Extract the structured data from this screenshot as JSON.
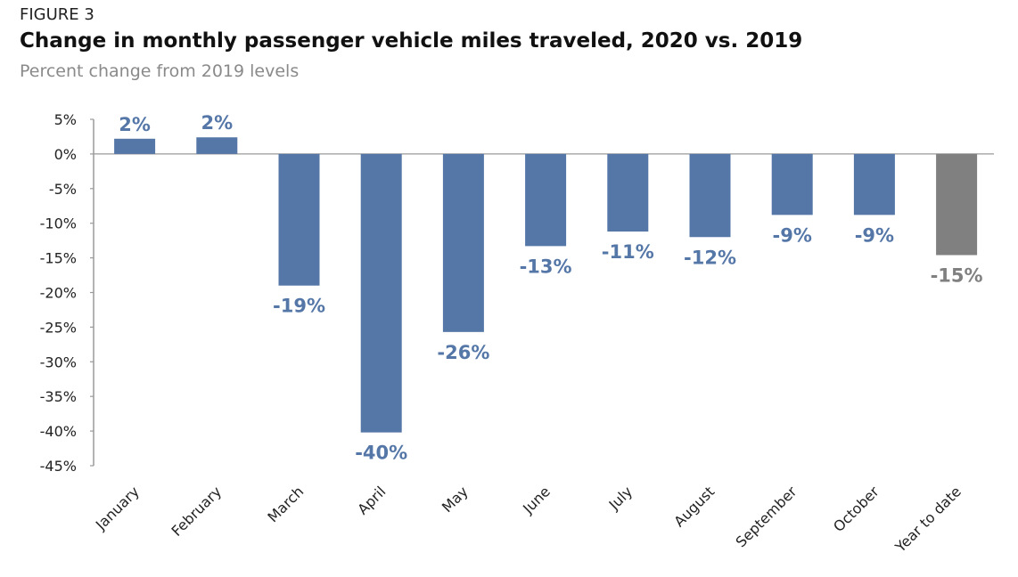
{
  "figure_label": "FIGURE 3",
  "chart_data": {
    "type": "bar",
    "title": "Change in monthly passenger vehicle miles traveled, 2020 vs. 2019",
    "subtitle": "Percent change from 2019 levels",
    "xlabel": "",
    "ylabel": "",
    "ylim": [
      -45,
      5
    ],
    "yticks": [
      5,
      0,
      -5,
      -10,
      -15,
      -20,
      -25,
      -30,
      -35,
      -40,
      -45
    ],
    "ytick_labels": [
      "5%",
      "0%",
      "-5%",
      "-10%",
      "-15%",
      "-20%",
      "-25%",
      "-30%",
      "-35%",
      "-40%",
      "-45%"
    ],
    "grid": false,
    "categories": [
      "January",
      "February",
      "March",
      "April",
      "May",
      "June",
      "July",
      "August",
      "September",
      "October",
      "Year to date"
    ],
    "values": [
      2.2,
      2.4,
      -19,
      -40.2,
      -25.7,
      -13.3,
      -11.2,
      -12,
      -8.8,
      -8.8,
      -14.6
    ],
    "data_labels": [
      "2%",
      "2%",
      "-19%",
      "-40%",
      "-26%",
      "-13%",
      "-11%",
      "-12%",
      "-9%",
      "-9%",
      "-15%"
    ],
    "colors": {
      "monthly": "#5577a8",
      "year_to_date": "#808080",
      "monthly_label": "#5577a8",
      "year_to_date_label": "#808080"
    }
  }
}
